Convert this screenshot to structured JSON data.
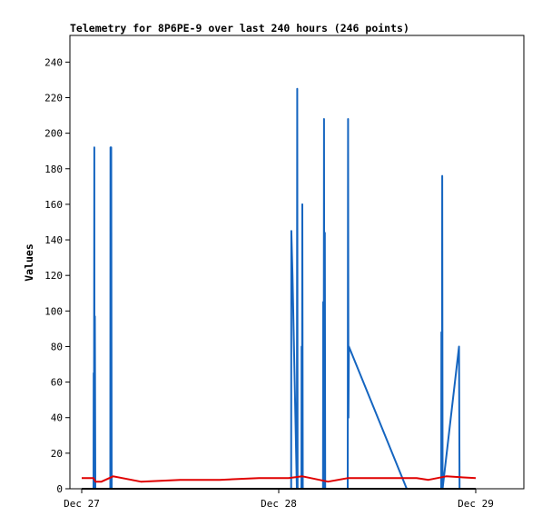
{
  "chart_data": {
    "type": "line",
    "title": "Telemetry for 8P6PE-9 over last 240 hours (246 points)",
    "ylabel": "Values",
    "xlabel": "",
    "ylim": [
      0,
      255
    ],
    "xlim": [
      0,
      2.24
    ],
    "x_unit": "days since Dec 27",
    "x_ticks": [
      {
        "x": 0,
        "label": "Dec 27"
      },
      {
        "x": 1,
        "label": "Dec 28"
      },
      {
        "x": 2,
        "label": "Dec 29"
      }
    ],
    "y_ticks": [
      0,
      20,
      40,
      60,
      80,
      100,
      120,
      140,
      160,
      180,
      200,
      220,
      240
    ],
    "legend": "none",
    "grid": false,
    "colors": {
      "blue": "#1565c0",
      "red": "#e00000",
      "black": "#000000"
    },
    "series": [
      {
        "color": "#1565c0",
        "points": [
          [
            0.06,
            0
          ],
          [
            0.061,
            65
          ],
          [
            0.062,
            0
          ],
          [
            0.064,
            192
          ],
          [
            0.065,
            0
          ],
          [
            0.067,
            97
          ],
          [
            0.069,
            0
          ],
          [
            0.145,
            0
          ],
          [
            0.146,
            192
          ],
          [
            0.148,
            0
          ],
          [
            0.15,
            192
          ],
          [
            0.152,
            0
          ],
          [
            1.063,
            0
          ],
          [
            1.064,
            145
          ],
          [
            1.07,
            120
          ],
          [
            1.092,
            0
          ],
          [
            1.094,
            225
          ],
          [
            1.096,
            0
          ],
          [
            1.115,
            0
          ],
          [
            1.116,
            80
          ],
          [
            1.118,
            0
          ],
          [
            1.12,
            160
          ],
          [
            1.122,
            0
          ],
          [
            1.225,
            0
          ],
          [
            1.226,
            105
          ],
          [
            1.228,
            0
          ],
          [
            1.23,
            208
          ],
          [
            1.232,
            0
          ],
          [
            1.234,
            144
          ],
          [
            1.236,
            0
          ],
          [
            1.35,
            0
          ],
          [
            1.352,
            208
          ],
          [
            1.354,
            40
          ],
          [
            1.356,
            80
          ],
          [
            1.65,
            0
          ],
          [
            1.825,
            0
          ],
          [
            1.826,
            88
          ],
          [
            1.828,
            0
          ],
          [
            1.83,
            176
          ],
          [
            1.832,
            0
          ],
          [
            1.915,
            80
          ],
          [
            1.918,
            0
          ]
        ]
      },
      {
        "color": "#e00000",
        "points": [
          [
            0.0,
            6
          ],
          [
            0.06,
            6
          ],
          [
            0.07,
            4
          ],
          [
            0.1,
            4
          ],
          [
            0.16,
            7
          ],
          [
            0.3,
            4
          ],
          [
            0.5,
            5
          ],
          [
            0.7,
            5
          ],
          [
            0.9,
            6
          ],
          [
            1.05,
            6
          ],
          [
            1.12,
            7
          ],
          [
            1.25,
            4
          ],
          [
            1.35,
            6
          ],
          [
            1.7,
            6
          ],
          [
            1.76,
            5
          ],
          [
            1.85,
            7
          ],
          [
            2.0,
            6
          ]
        ]
      },
      {
        "color": "#000000",
        "points": [
          [
            0.0,
            0
          ],
          [
            2.0,
            0
          ]
        ]
      }
    ]
  }
}
